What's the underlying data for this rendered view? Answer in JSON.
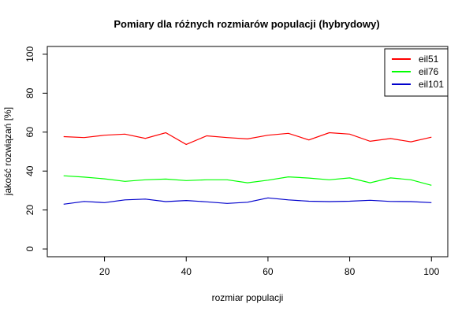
{
  "chart_data": {
    "type": "line",
    "title": "Pomiary dla różnych rozmiarów populacji (hybrydowy)",
    "xlabel": "rozmiar populacji",
    "ylabel": "jakość rozwiązań [%]",
    "xlim": [
      6,
      104
    ],
    "ylim": [
      -4,
      104
    ],
    "xticks": [
      20,
      40,
      60,
      80,
      100
    ],
    "yticks": [
      0,
      20,
      40,
      60,
      80,
      100
    ],
    "grid": false,
    "legend_position": "top-right",
    "x": [
      10,
      15,
      20,
      25,
      30,
      35,
      40,
      45,
      50,
      55,
      60,
      65,
      70,
      75,
      80,
      85,
      90,
      95,
      100
    ],
    "series": [
      {
        "name": "eil51",
        "color": "#ff0000",
        "values": [
          57.7,
          57.2,
          58.4,
          59.0,
          56.8,
          59.7,
          53.7,
          58.1,
          57.2,
          56.5,
          58.4,
          59.4,
          56.0,
          59.7,
          59.0,
          55.3,
          56.7,
          55.0,
          57.4
        ]
      },
      {
        "name": "eil76",
        "color": "#00ff00",
        "values": [
          37.6,
          36.9,
          36.0,
          34.7,
          35.5,
          35.9,
          35.1,
          35.5,
          35.5,
          34.0,
          35.3,
          37.0,
          36.4,
          35.5,
          36.5,
          34.0,
          36.5,
          35.5,
          32.7
        ]
      },
      {
        "name": "eil101",
        "color": "#0000cc",
        "values": [
          23.0,
          24.4,
          23.8,
          25.2,
          25.6,
          24.3,
          24.9,
          24.2,
          23.4,
          24.0,
          26.2,
          25.2,
          24.5,
          24.3,
          24.5,
          25.0,
          24.4,
          24.3,
          23.8
        ]
      }
    ]
  }
}
